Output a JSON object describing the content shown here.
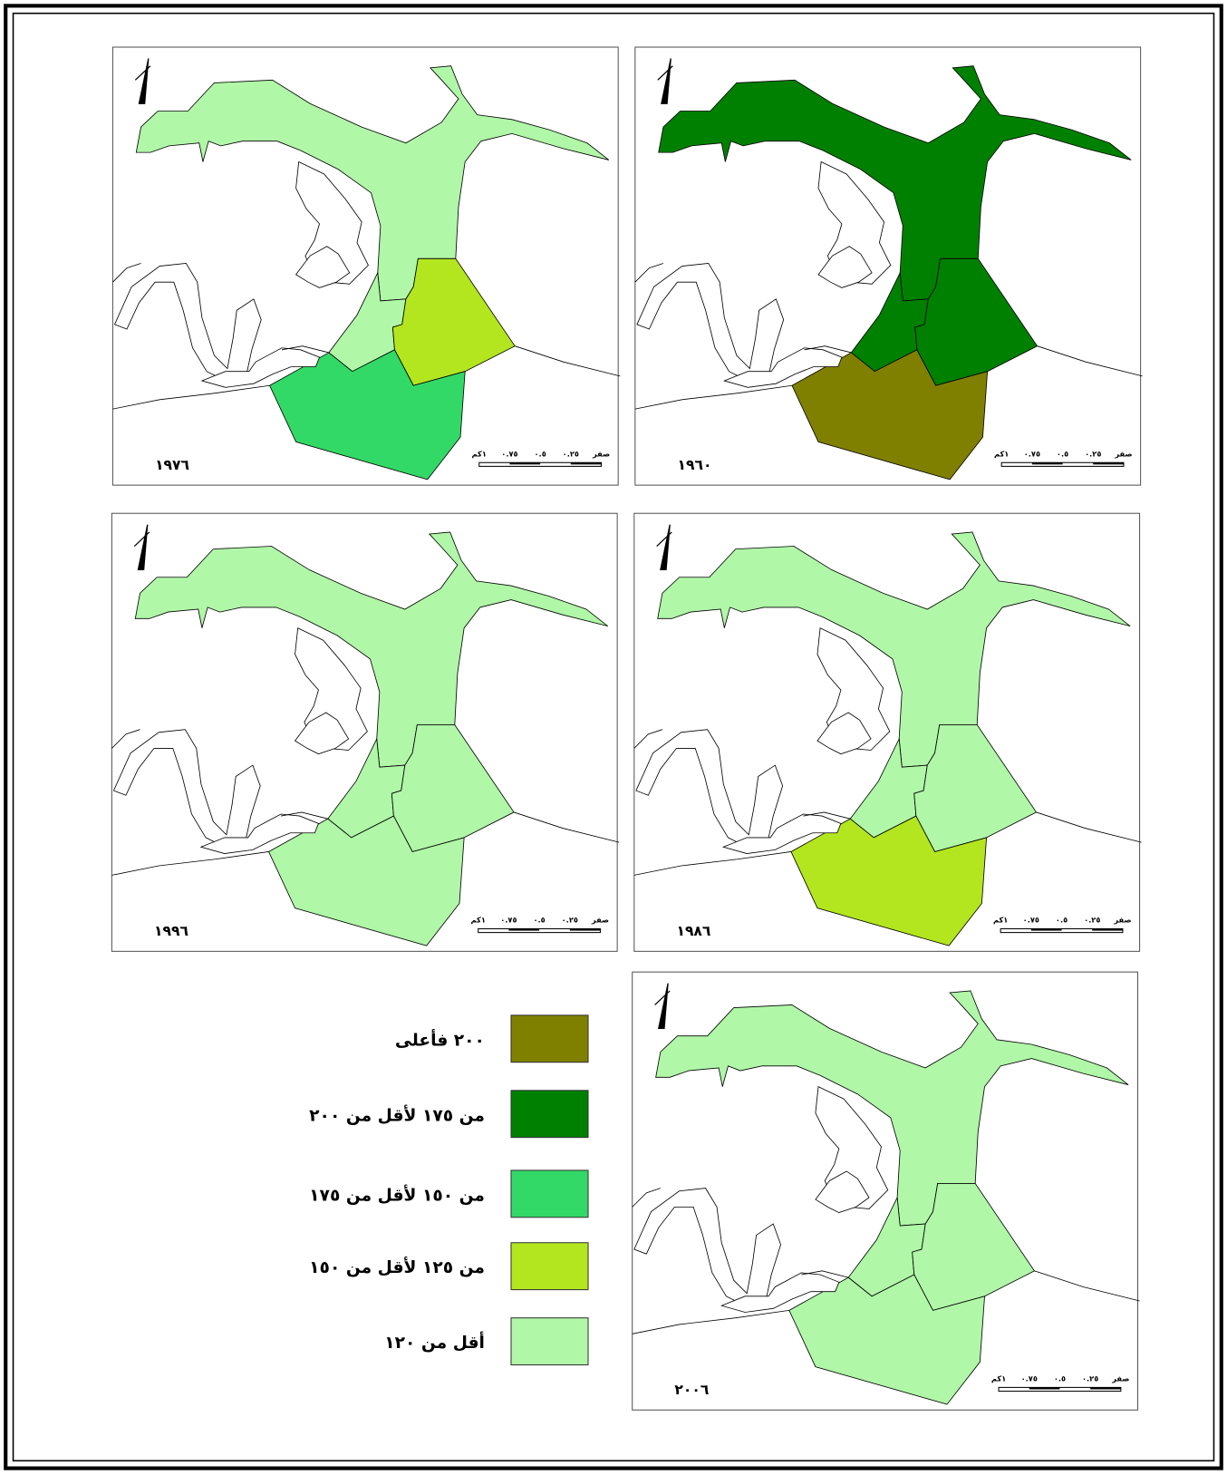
{
  "maps": [
    {
      "year": "١٩٧٦",
      "region_colors": [
        "#b0f7a8",
        "#b0f7a8",
        "#b3e61f",
        "#33d966"
      ]
    },
    {
      "year": "١٩٦٠",
      "region_colors": [
        "#008000",
        "#008000",
        "#008000",
        "#808000"
      ]
    },
    {
      "year": "١٩٩٦",
      "region_colors": [
        "#b0f7a8",
        "#b0f7a8",
        "#b0f7a8",
        "#b0f7a8"
      ]
    },
    {
      "year": "١٩٨٦",
      "region_colors": [
        "#b0f7a8",
        "#b0f7a8",
        "#b0f7a8",
        "#b3e61f"
      ]
    },
    {
      "year": "٢٠٠٦",
      "region_colors": [
        "#b0f7a8",
        "#b0f7a8",
        "#b0f7a8",
        "#b0f7a8"
      ]
    }
  ],
  "scale_bar": [
    "صفر",
    "٠.٢٥",
    "٠.٥",
    "٠.٧٥",
    "١كم"
  ],
  "legend": [
    {
      "label": "٢٠٠ فأعلى",
      "color": "#808000"
    },
    {
      "label": "من ١٧٥ لأقل من ٢٠٠",
      "color": "#008000"
    },
    {
      "label": "من ١٥٠ لأقل من ١٧٥",
      "color": "#33d966"
    },
    {
      "label": "من ١٢٥ لأقل من ١٥٠",
      "color": "#b3e61f"
    },
    {
      "label": "أقل من ١٢٠",
      "color": "#b0f7a8"
    }
  ]
}
